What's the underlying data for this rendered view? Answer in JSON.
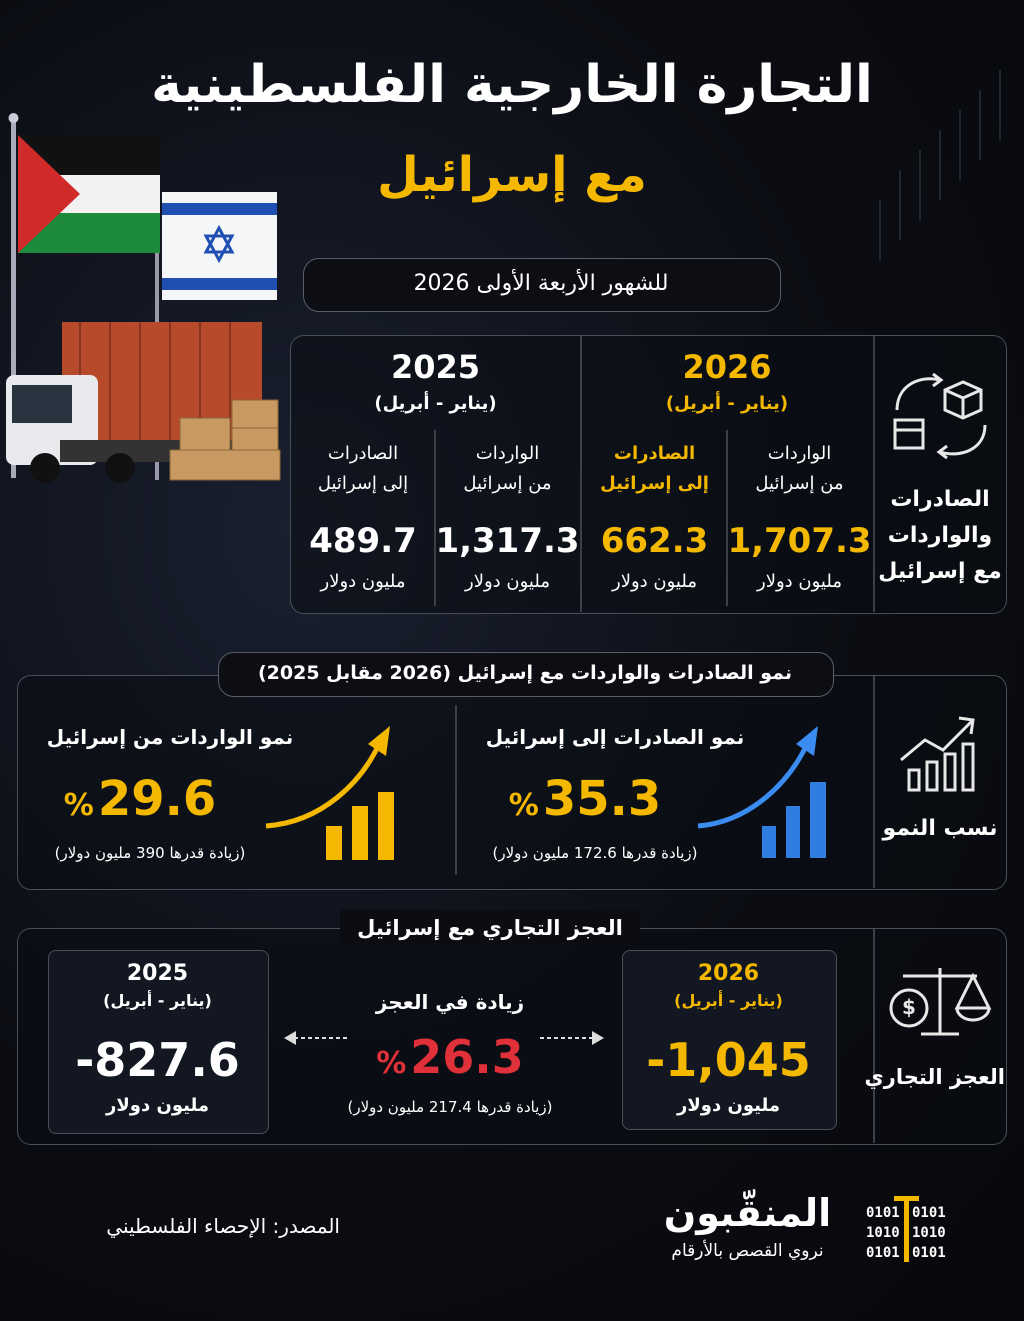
{
  "header": {
    "title": "التجارة الخارجية الفلسطينية",
    "subtitle": "مع إسرائيل",
    "period": "للشهور الأربعة الأولى 2026"
  },
  "trade": {
    "label": "الصادرات والواردات مع إسرائيل",
    "years": [
      {
        "year": "2026",
        "months": "(يناير - أبريل)",
        "items": [
          {
            "label": "الواردات",
            "sublabel": "من إسرائيل",
            "value": "1,707.3",
            "unit": "مليون دولار"
          },
          {
            "label": "الصادرات",
            "sublabel": "إلى إسرائيل",
            "value": "662.3",
            "unit": "مليون دولار"
          }
        ]
      },
      {
        "year": "2025",
        "months": "(يناير - أبريل)",
        "items": [
          {
            "label": "الواردات",
            "sublabel": "من إسرائيل",
            "value": "1,317.3",
            "unit": "مليون دولار"
          },
          {
            "label": "الصادرات",
            "sublabel": "إلى إسرائيل",
            "value": "489.7",
            "unit": "مليون دولار"
          }
        ]
      }
    ]
  },
  "growth": {
    "title": "نمو الصادرات والواردات مع إسرائيل (2026 مقابل 2025)",
    "label": "نسب النمو",
    "items": [
      {
        "title": "نمو الصادرات إلى إسرائيل",
        "value": "35.3",
        "percent": "%",
        "note": "(زيادة قدرها 172.6 مليون دولار)"
      },
      {
        "title": "نمو الواردات من إسرائيل",
        "value": "29.6",
        "percent": "%",
        "note": "(زيادة قدرها 390 مليون دولار)"
      }
    ]
  },
  "deficit": {
    "title": "العجز التجاري مع إسرائيل",
    "label": "العجز التجاري",
    "current": {
      "year": "2026",
      "months": "(يناير - أبريل)",
      "value": "-1,045",
      "unit": "مليون دولار"
    },
    "previous": {
      "year": "2025",
      "months": "(يناير - أبريل)",
      "value": "-827.6",
      "unit": "مليون دولار"
    },
    "increase": {
      "title": "زيادة في العجز",
      "value": "26.3",
      "percent": "%",
      "note": "(زيادة قدرها 217.4 مليون دولار)"
    }
  },
  "footer": {
    "source": "المصدر: الإحصاء الفلسطيني",
    "brand": "المنقّبون",
    "tagline": "نروي القصص بالأرقام",
    "binary_left": [
      "0101",
      "1010",
      "0101"
    ],
    "binary_right": [
      "0101",
      "1010",
      "0101"
    ]
  }
}
